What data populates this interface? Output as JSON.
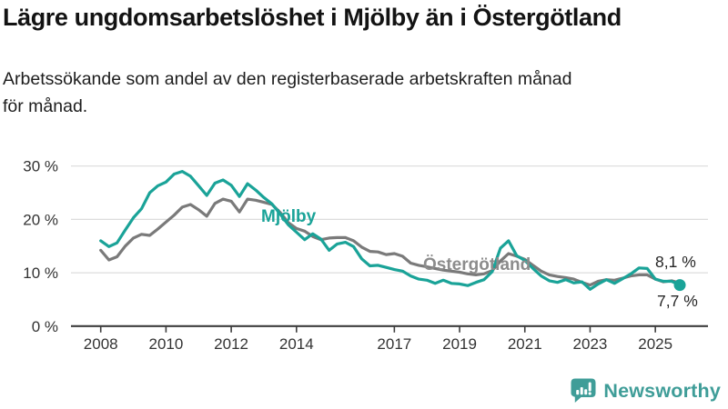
{
  "header": {
    "title": "Lägre ungdomsarbetslöshet i Mjölby än i Östergötland",
    "subtitle": "Arbetssökande som andel av den registerbaserade arbetskraften månad\nför månad."
  },
  "chart_data": {
    "type": "line",
    "unit": "%",
    "xlabel": "",
    "ylabel": "",
    "ylim": [
      0,
      32
    ],
    "xlim": [
      2007.9,
      2026.6
    ],
    "grid": "horizontal",
    "legend": "inline-labels-on-lines",
    "x": [
      2008,
      2008.25,
      2008.5,
      2008.75,
      2009,
      2009.25,
      2009.5,
      2009.75,
      2010,
      2010.25,
      2010.5,
      2010.75,
      2011,
      2011.25,
      2011.5,
      2011.75,
      2012,
      2012.25,
      2012.5,
      2012.75,
      2013,
      2013.25,
      2013.5,
      2013.75,
      2014,
      2014.25,
      2014.5,
      2014.75,
      2015,
      2015.25,
      2015.5,
      2015.75,
      2016,
      2016.25,
      2016.5,
      2016.75,
      2017,
      2017.25,
      2017.5,
      2017.75,
      2018,
      2018.25,
      2018.5,
      2018.75,
      2019,
      2019.25,
      2019.5,
      2019.75,
      2020,
      2020.25,
      2020.5,
      2020.75,
      2021,
      2021.25,
      2021.5,
      2021.75,
      2022,
      2022.25,
      2022.5,
      2022.75,
      2023,
      2023.25,
      2023.5,
      2023.75,
      2024,
      2024.25,
      2024.5,
      2024.75,
      2025,
      2025.25,
      2025.5,
      2025.75
    ],
    "series": [
      {
        "name": "Mjölby",
        "color": "#1aa398",
        "label_color": "#1aa398",
        "end_label": "7,7 %",
        "end_value": 7.7,
        "values": [
          16.0,
          14.9,
          15.6,
          18.0,
          20.3,
          22.0,
          25.0,
          26.3,
          27.0,
          28.5,
          29.0,
          28.1,
          26.3,
          24.5,
          26.8,
          27.4,
          26.4,
          24.3,
          26.7,
          25.5,
          24.1,
          22.9,
          21.0,
          19.0,
          17.6,
          16.2,
          17.3,
          16.3,
          14.2,
          15.4,
          15.7,
          14.9,
          12.6,
          11.3,
          11.4,
          11.0,
          10.6,
          10.3,
          9.4,
          8.8,
          8.6,
          8.0,
          8.6,
          8.0,
          7.9,
          7.6,
          8.2,
          8.7,
          10.2,
          14.6,
          16.0,
          13.2,
          12.3,
          10.8,
          9.4,
          8.5,
          8.2,
          8.7,
          8.1,
          8.3,
          6.9,
          7.9,
          8.7,
          8.0,
          8.9,
          9.8,
          10.9,
          10.8,
          8.8,
          8.4,
          8.4,
          7.7
        ]
      },
      {
        "name": "Östergötland",
        "color": "#7a7a7a",
        "label_color": "#8c8c8c",
        "end_label": "8,1 %",
        "end_value": 8.1,
        "values": [
          14.2,
          12.4,
          13.0,
          15.0,
          16.5,
          17.2,
          17.0,
          18.2,
          19.5,
          20.8,
          22.3,
          22.8,
          21.8,
          20.6,
          23.0,
          23.8,
          23.4,
          21.4,
          23.8,
          23.6,
          23.2,
          22.8,
          21.3,
          19.4,
          18.3,
          17.8,
          16.8,
          16.2,
          16.5,
          16.6,
          16.6,
          16.0,
          14.8,
          14.0,
          13.9,
          13.4,
          13.6,
          13.1,
          11.8,
          11.4,
          11.1,
          10.8,
          10.5,
          10.3,
          10.1,
          9.8,
          9.6,
          9.8,
          10.4,
          12.2,
          13.6,
          13.1,
          12.5,
          11.4,
          10.3,
          9.6,
          9.3,
          9.1,
          8.8,
          8.2,
          7.7,
          8.4,
          8.7,
          8.6,
          9.0,
          9.4,
          9.6,
          9.6,
          8.8,
          8.3,
          8.5,
          8.1
        ]
      }
    ],
    "xticks": [
      2008,
      2010,
      2012,
      2014,
      2017,
      2019,
      2021,
      2023,
      2025
    ],
    "yticks": [
      {
        "value": 0,
        "label": "0 %"
      },
      {
        "value": 10,
        "label": "10 %"
      },
      {
        "value": 20,
        "label": "20 %"
      },
      {
        "value": 30,
        "label": "30 %"
      }
    ],
    "colors": {
      "grid": "#dcdcdc",
      "axis": "#3d3d3d",
      "axis_text": "#333333",
      "end_label_text": "#262626"
    }
  },
  "footer": {
    "brand": "Newsworthy",
    "brand_color": "#3f9d98",
    "logo_icon": "bar-chart-speech-bubble"
  }
}
